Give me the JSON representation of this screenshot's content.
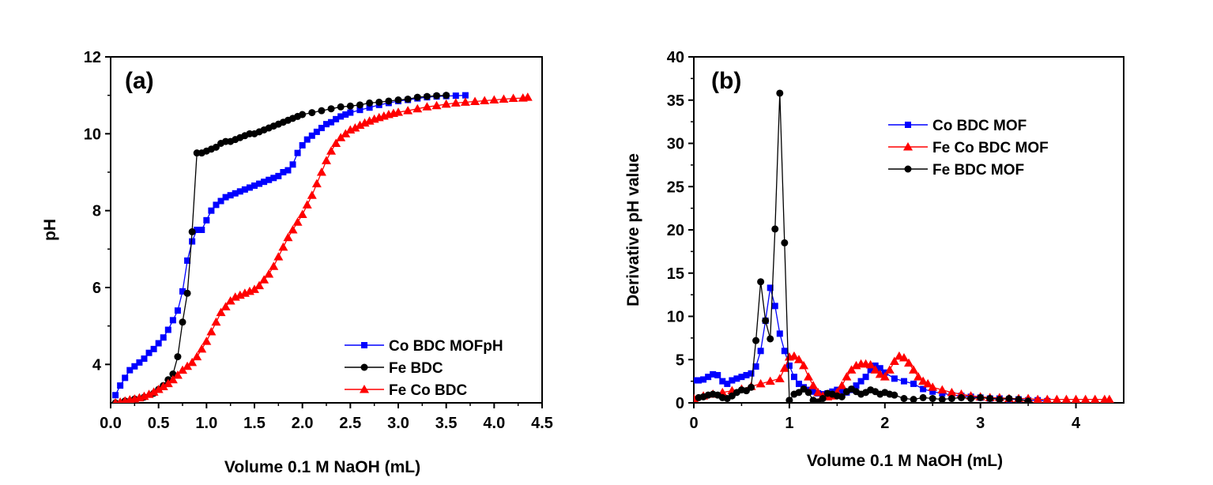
{
  "chart_data": [
    {
      "type": "line",
      "panel_label": "(a)",
      "xlabel": "Volume 0.1 M NaOH (mL)",
      "ylabel": "pH",
      "xlim": [
        0.0,
        4.5
      ],
      "ylim": [
        3,
        12
      ],
      "xticks": [
        "0.0",
        "0.5",
        "1.0",
        "1.5",
        "2.0",
        "2.5",
        "3.0",
        "3.5",
        "4.0",
        "4.5"
      ],
      "yticks": [
        "4",
        "6",
        "8",
        "10",
        "12"
      ],
      "grid": false,
      "legend_position": "bottom-right",
      "series": [
        {
          "name": "Co BDC MOFpH",
          "color": "#0000ff",
          "marker": "square",
          "x": [
            0.05,
            0.1,
            0.15,
            0.2,
            0.25,
            0.3,
            0.35,
            0.4,
            0.45,
            0.5,
            0.55,
            0.6,
            0.65,
            0.7,
            0.75,
            0.8,
            0.85,
            0.9,
            0.95,
            1.0,
            1.05,
            1.1,
            1.15,
            1.2,
            1.25,
            1.3,
            1.35,
            1.4,
            1.45,
            1.5,
            1.55,
            1.6,
            1.65,
            1.7,
            1.75,
            1.8,
            1.85,
            1.9,
            1.95,
            2.0,
            2.05,
            2.1,
            2.15,
            2.2,
            2.25,
            2.3,
            2.35,
            2.4,
            2.45,
            2.5,
            2.6,
            2.7,
            2.8,
            2.9,
            3.0,
            3.1,
            3.2,
            3.3,
            3.4,
            3.5,
            3.6,
            3.7
          ],
          "values": [
            3.2,
            3.45,
            3.65,
            3.85,
            3.95,
            4.05,
            4.15,
            4.3,
            4.4,
            4.55,
            4.7,
            4.9,
            5.15,
            5.4,
            5.9,
            6.7,
            7.2,
            7.5,
            7.5,
            7.75,
            8.0,
            8.15,
            8.25,
            8.35,
            8.4,
            8.45,
            8.5,
            8.55,
            8.6,
            8.65,
            8.7,
            8.75,
            8.8,
            8.85,
            8.9,
            9.0,
            9.05,
            9.2,
            9.5,
            9.7,
            9.85,
            9.95,
            10.05,
            10.15,
            10.25,
            10.3,
            10.38,
            10.45,
            10.5,
            10.55,
            10.62,
            10.68,
            10.75,
            10.8,
            10.85,
            10.88,
            10.92,
            10.95,
            10.97,
            10.98,
            10.99,
            11.0
          ]
        },
        {
          "name": "Fe BDC",
          "color": "#000000",
          "marker": "circle",
          "x": [
            0.05,
            0.15,
            0.25,
            0.35,
            0.45,
            0.5,
            0.55,
            0.6,
            0.65,
            0.7,
            0.75,
            0.8,
            0.85,
            0.9,
            0.95,
            1.0,
            1.05,
            1.1,
            1.15,
            1.2,
            1.25,
            1.3,
            1.35,
            1.4,
            1.45,
            1.5,
            1.55,
            1.6,
            1.65,
            1.7,
            1.75,
            1.8,
            1.85,
            1.9,
            1.95,
            2.0,
            2.1,
            2.2,
            2.3,
            2.4,
            2.5,
            2.6,
            2.7,
            2.8,
            2.9,
            3.0,
            3.1,
            3.2,
            3.3,
            3.4,
            3.5
          ],
          "values": [
            3.0,
            3.05,
            3.1,
            3.15,
            3.25,
            3.35,
            3.45,
            3.6,
            3.75,
            4.2,
            5.1,
            5.85,
            7.45,
            9.5,
            9.5,
            9.55,
            9.6,
            9.65,
            9.75,
            9.8,
            9.8,
            9.85,
            9.9,
            9.95,
            10.0,
            10.0,
            10.05,
            10.1,
            10.15,
            10.2,
            10.25,
            10.3,
            10.35,
            10.4,
            10.45,
            10.5,
            10.55,
            10.6,
            10.65,
            10.7,
            10.72,
            10.75,
            10.8,
            10.82,
            10.85,
            10.88,
            10.9,
            10.95,
            10.97,
            10.99,
            11.0
          ]
        },
        {
          "name": "Fe Co BDC",
          "color": "#ff0000",
          "marker": "triangle",
          "x": [
            0.05,
            0.1,
            0.15,
            0.2,
            0.25,
            0.3,
            0.35,
            0.4,
            0.45,
            0.5,
            0.55,
            0.6,
            0.65,
            0.7,
            0.75,
            0.8,
            0.85,
            0.9,
            0.95,
            1.0,
            1.05,
            1.1,
            1.15,
            1.2,
            1.25,
            1.3,
            1.35,
            1.4,
            1.45,
            1.5,
            1.55,
            1.6,
            1.65,
            1.7,
            1.75,
            1.8,
            1.85,
            1.9,
            1.95,
            2.0,
            2.05,
            2.1,
            2.15,
            2.2,
            2.25,
            2.3,
            2.35,
            2.4,
            2.45,
            2.5,
            2.55,
            2.6,
            2.65,
            2.7,
            2.75,
            2.8,
            2.85,
            2.9,
            2.95,
            3.0,
            3.1,
            3.2,
            3.3,
            3.4,
            3.5,
            3.6,
            3.7,
            3.8,
            3.9,
            4.0,
            4.1,
            4.2,
            4.3,
            4.35
          ],
          "values": [
            3.0,
            3.02,
            3.05,
            3.08,
            3.1,
            3.13,
            3.17,
            3.22,
            3.28,
            3.35,
            3.42,
            3.5,
            3.6,
            3.72,
            3.85,
            3.95,
            4.05,
            4.2,
            4.4,
            4.6,
            4.85,
            5.1,
            5.35,
            5.5,
            5.65,
            5.75,
            5.8,
            5.85,
            5.9,
            5.95,
            6.05,
            6.2,
            6.35,
            6.55,
            6.8,
            7.05,
            7.3,
            7.5,
            7.7,
            7.9,
            8.15,
            8.4,
            8.7,
            9.0,
            9.3,
            9.55,
            9.75,
            9.9,
            10.0,
            10.1,
            10.15,
            10.22,
            10.28,
            10.33,
            10.38,
            10.42,
            10.46,
            10.5,
            10.53,
            10.56,
            10.6,
            10.65,
            10.7,
            10.73,
            10.77,
            10.8,
            10.82,
            10.84,
            10.86,
            10.88,
            10.9,
            10.92,
            10.93,
            10.95
          ]
        }
      ]
    },
    {
      "type": "line",
      "panel_label": "(b)",
      "xlabel": "Volume 0.1 M NaOH (mL)",
      "ylabel": "Derivative pH value",
      "xlim": [
        0,
        4.5
      ],
      "ylim": [
        0,
        40
      ],
      "xticks": [
        "0",
        "1",
        "2",
        "3",
        "4"
      ],
      "yticks": [
        "0",
        "5",
        "10",
        "15",
        "20",
        "25",
        "30",
        "35",
        "40"
      ],
      "grid": false,
      "legend_position": "top-right",
      "series": [
        {
          "name": "Co BDC MOF",
          "color": "#0000ff",
          "marker": "square",
          "x": [
            0.0,
            0.05,
            0.1,
            0.15,
            0.2,
            0.25,
            0.3,
            0.35,
            0.4,
            0.45,
            0.5,
            0.55,
            0.6,
            0.65,
            0.7,
            0.75,
            0.8,
            0.85,
            0.9,
            0.95,
            1.0,
            1.05,
            1.1,
            1.15,
            1.2,
            1.25,
            1.3,
            1.35,
            1.4,
            1.45,
            1.5,
            1.55,
            1.6,
            1.65,
            1.7,
            1.75,
            1.8,
            1.85,
            1.9,
            1.95,
            2.0,
            2.1,
            2.2,
            2.3,
            2.4,
            2.5,
            2.6,
            2.7,
            2.8,
            2.9,
            3.0,
            3.1,
            3.2,
            3.3,
            3.4,
            3.5,
            3.6,
            3.7
          ],
          "values": [
            2.6,
            2.6,
            2.7,
            3.0,
            3.3,
            3.2,
            2.5,
            2.2,
            2.6,
            2.8,
            3.0,
            3.2,
            3.4,
            4.2,
            6.0,
            9.5,
            13.3,
            11.2,
            8.0,
            6.0,
            4.3,
            3.0,
            2.2,
            1.8,
            1.5,
            1.3,
            1.1,
            1.0,
            1.1,
            1.3,
            1.5,
            1.4,
            1.2,
            1.5,
            2.0,
            2.5,
            3.0,
            3.8,
            4.3,
            4.0,
            3.5,
            2.8,
            2.5,
            2.2,
            1.6,
            1.3,
            1.1,
            0.9,
            0.8,
            0.7,
            0.6,
            0.5,
            0.5,
            0.4,
            0.4,
            0.3,
            0.3,
            0.2
          ]
        },
        {
          "name": "Fe Co BDC MOF",
          "color": "#ff0000",
          "marker": "triangle",
          "x": [
            0.0,
            0.1,
            0.2,
            0.3,
            0.4,
            0.5,
            0.6,
            0.7,
            0.8,
            0.9,
            0.95,
            1.0,
            1.05,
            1.1,
            1.15,
            1.2,
            1.25,
            1.3,
            1.35,
            1.4,
            1.45,
            1.5,
            1.55,
            1.6,
            1.65,
            1.7,
            1.75,
            1.8,
            1.85,
            1.9,
            1.95,
            2.0,
            2.05,
            2.1,
            2.15,
            2.2,
            2.25,
            2.3,
            2.35,
            2.4,
            2.45,
            2.5,
            2.6,
            2.7,
            2.8,
            2.9,
            3.0,
            3.1,
            3.2,
            3.3,
            3.4,
            3.5,
            3.6,
            3.7,
            3.8,
            3.9,
            4.0,
            4.1,
            4.2,
            4.3,
            4.35
          ],
          "values": [
            0.5,
            0.8,
            1.0,
            1.2,
            1.4,
            1.6,
            1.9,
            2.2,
            2.5,
            2.8,
            4.0,
            5.3,
            5.4,
            5.0,
            4.3,
            3.0,
            2.0,
            1.2,
            0.8,
            0.7,
            0.8,
            1.2,
            2.0,
            3.0,
            3.8,
            4.3,
            4.5,
            4.5,
            4.4,
            3.8,
            3.3,
            3.0,
            3.8,
            4.8,
            5.4,
            5.2,
            4.6,
            3.8,
            3.0,
            2.5,
            2.2,
            1.8,
            1.5,
            1.2,
            1.0,
            0.8,
            0.7,
            0.6,
            0.6,
            0.5,
            0.5,
            0.5,
            0.4,
            0.4,
            0.4,
            0.4,
            0.4,
            0.4,
            0.4,
            0.4,
            0.4
          ]
        },
        {
          "name": "Fe BDC MOF",
          "color": "#000000",
          "marker": "circle",
          "x": [
            0.05,
            0.1,
            0.15,
            0.2,
            0.25,
            0.3,
            0.35,
            0.4,
            0.45,
            0.5,
            0.55,
            0.6,
            0.65,
            0.7,
            0.75,
            0.8,
            0.85,
            0.9,
            0.95,
            1.0,
            1.05,
            1.1,
            1.15,
            1.2,
            1.25,
            1.3,
            1.35,
            1.4,
            1.45,
            1.5,
            1.55,
            1.6,
            1.65,
            1.7,
            1.75,
            1.8,
            1.85,
            1.9,
            1.95,
            2.0,
            2.05,
            2.1,
            2.2,
            2.3,
            2.4,
            2.5,
            2.6,
            2.7,
            2.8,
            2.9,
            3.0,
            3.1,
            3.2,
            3.3,
            3.4,
            3.5
          ],
          "values": [
            0.6,
            0.7,
            0.9,
            1.0,
            0.9,
            0.6,
            0.5,
            0.8,
            1.2,
            1.5,
            1.4,
            1.8,
            7.2,
            14.0,
            9.5,
            7.4,
            20.1,
            35.8,
            18.5,
            0.3,
            1.0,
            1.2,
            1.6,
            1.2,
            0.3,
            0.1,
            0.5,
            1.1,
            1.0,
            0.8,
            0.7,
            1.3,
            1.6,
            1.3,
            1.0,
            1.2,
            1.5,
            1.3,
            1.0,
            1.2,
            1.0,
            0.9,
            0.5,
            0.4,
            0.6,
            0.5,
            0.4,
            0.5,
            0.6,
            0.5,
            0.6,
            0.5,
            0.4,
            0.5,
            0.4,
            0.2
          ]
        }
      ]
    }
  ]
}
